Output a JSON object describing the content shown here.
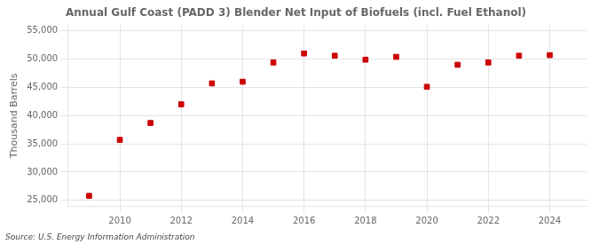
{
  "chart_data": {
    "type": "scatter",
    "title": "Annual Gulf Coast (PADD 3) Blender Net Input of Biofuels (incl. Fuel Ethanol)",
    "ylabel": "Thousand Barrels",
    "source": "Source: U.S. Energy Information Administration",
    "x": [
      2009,
      2010,
      2011,
      2012,
      2013,
      2014,
      2015,
      2016,
      2017,
      2018,
      2019,
      2020,
      2021,
      2022,
      2023,
      2024
    ],
    "values": [
      25800,
      35700,
      38700,
      42000,
      45700,
      46000,
      49400,
      51000,
      50600,
      49900,
      50400,
      45100,
      49000,
      49400,
      50600,
      50700
    ],
    "color": "#cc0000",
    "marker": "square",
    "xlim": [
      2008.3,
      2025.2
    ],
    "xticks": [
      2010,
      2012,
      2014,
      2016,
      2018,
      2020,
      2022,
      2024
    ],
    "ylim": [
      24000,
      56000
    ],
    "yticks": [
      {
        "value": 25000,
        "label": "25,000"
      },
      {
        "value": 30000,
        "label": "30,000"
      },
      {
        "value": 35000,
        "label": "35,000"
      },
      {
        "value": 40000,
        "label": "40,000"
      },
      {
        "value": 45000,
        "label": "45,000"
      },
      {
        "value": 50000,
        "label": "50,000"
      },
      {
        "value": 55000,
        "label": "55,000"
      }
    ],
    "grid": true
  }
}
